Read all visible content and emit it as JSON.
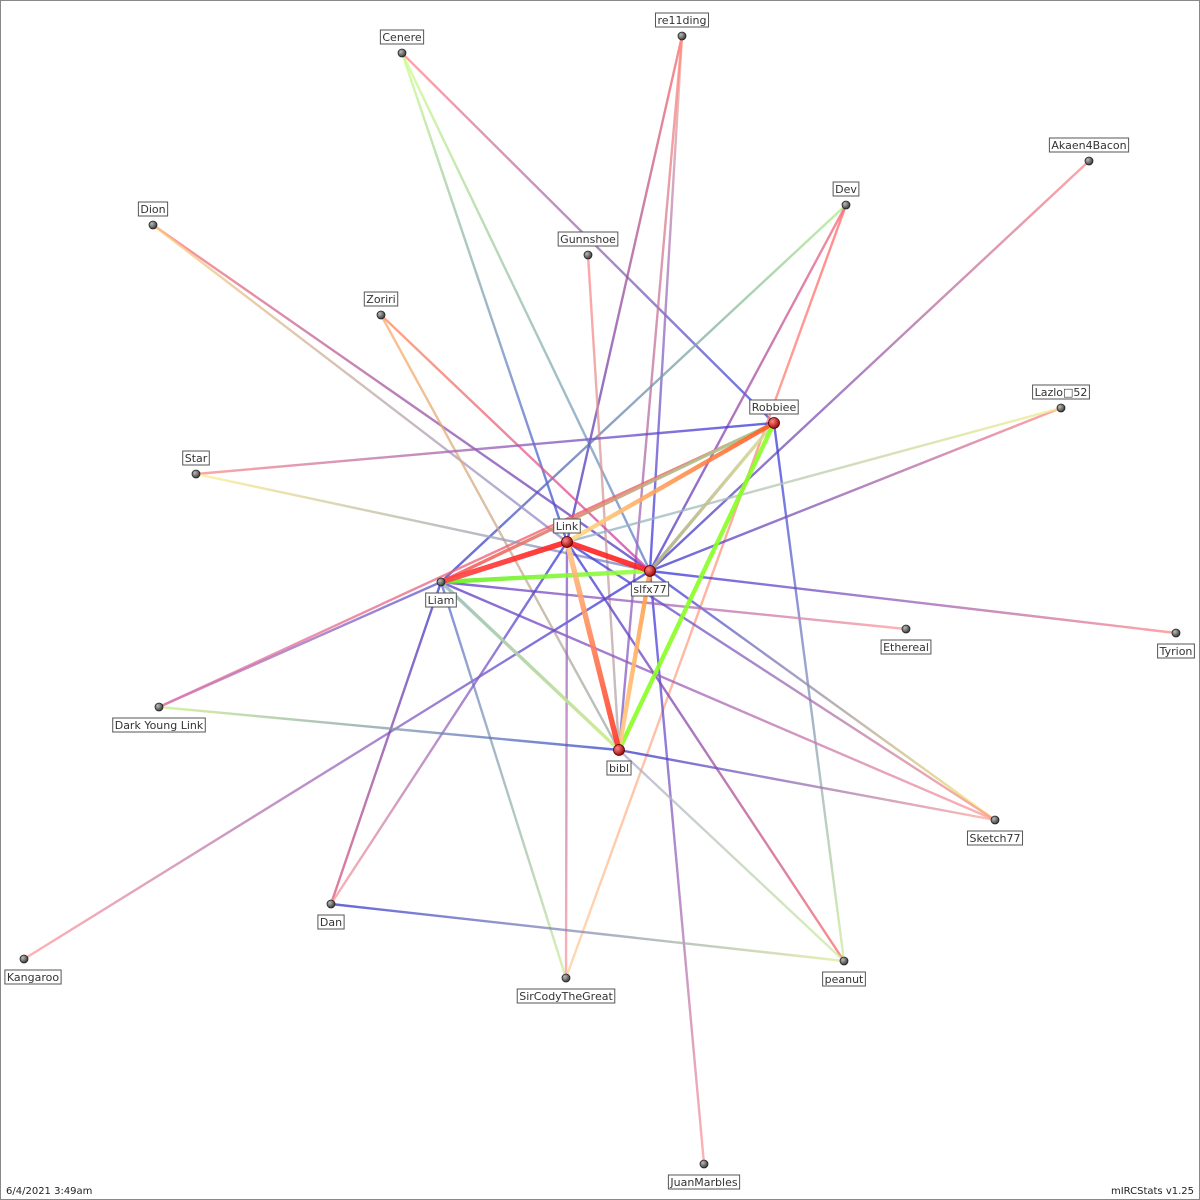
{
  "graph": {
    "nodes": [
      {
        "id": "cenere",
        "name": "Cenere",
        "major": false
      },
      {
        "id": "re11ding",
        "name": "re11ding",
        "major": false
      },
      {
        "id": "akaen4bacon",
        "name": "Akaen4Bacon",
        "major": false
      },
      {
        "id": "dev",
        "name": "Dev",
        "major": false
      },
      {
        "id": "dion",
        "name": "Dion",
        "major": false
      },
      {
        "id": "gunnshoe",
        "name": "Gunnshoe",
        "major": false
      },
      {
        "id": "zoriri",
        "name": "Zoriri",
        "major": false
      },
      {
        "id": "robbiee",
        "name": "Robbiee",
        "major": true
      },
      {
        "id": "lazlo52",
        "name": "Lazlo□52",
        "major": false
      },
      {
        "id": "star",
        "name": "Star",
        "major": false
      },
      {
        "id": "link",
        "name": "Link",
        "major": true
      },
      {
        "id": "slfx77",
        "name": "slfx77",
        "major": true
      },
      {
        "id": "liam",
        "name": "Liam",
        "major": false
      },
      {
        "id": "ethereal",
        "name": "Ethereal",
        "major": false
      },
      {
        "id": "tyrion",
        "name": "Tyrion",
        "major": false
      },
      {
        "id": "darkyounglink",
        "name": "Dark Young Link",
        "major": false
      },
      {
        "id": "bibl",
        "name": "bibl",
        "major": true
      },
      {
        "id": "sketch77",
        "name": "Sketch77",
        "major": false
      },
      {
        "id": "dan",
        "name": "Dan",
        "major": false
      },
      {
        "id": "kangaroo",
        "name": "Kangaroo",
        "major": false
      },
      {
        "id": "sircodythegreat",
        "name": "SirCodyTheGreat",
        "major": false
      },
      {
        "id": "peanut",
        "name": "peanut",
        "major": false
      },
      {
        "id": "juanmarbles",
        "name": "JuanMarbles",
        "major": false
      }
    ],
    "edges": [
      {
        "source": "link",
        "target": "slfx77",
        "weight": 5,
        "colors": [
          "#ff2222",
          "#ff2222"
        ]
      },
      {
        "source": "link",
        "target": "liam",
        "weight": 5,
        "colors": [
          "#ff2222",
          "#ff4444"
        ]
      },
      {
        "source": "link",
        "target": "robbiee",
        "weight": 4,
        "colors": [
          "#ffdd88",
          "#ff5522"
        ]
      },
      {
        "source": "liam",
        "target": "slfx77",
        "weight": 4,
        "colors": [
          "#66ee22",
          "#99ff44"
        ]
      },
      {
        "source": "link",
        "target": "bibl",
        "weight": 5,
        "colors": [
          "#ffcc88",
          "#ff3322"
        ]
      },
      {
        "source": "robbiee",
        "target": "bibl",
        "weight": 4,
        "colors": [
          "#88ff22",
          "#88ff22"
        ]
      },
      {
        "source": "slfx77",
        "target": "bibl",
        "weight": 4,
        "colors": [
          "#ff9944",
          "#ffcc88"
        ]
      },
      {
        "source": "slfx77",
        "target": "robbiee",
        "weight": 3,
        "colors": [
          "#aaaa88",
          "#dddd99"
        ]
      },
      {
        "source": "liam",
        "target": "robbiee",
        "weight": 3,
        "colors": [
          "#ff5555",
          "#99dd99"
        ]
      },
      {
        "source": "liam",
        "target": "bibl",
        "weight": 3,
        "colors": [
          "#99bbbb",
          "#ccee88"
        ]
      },
      {
        "source": "cenere",
        "target": "slfx77",
        "weight": 2,
        "colors": [
          "#ccff88",
          "#5577cc"
        ]
      },
      {
        "source": "cenere",
        "target": "link",
        "weight": 2,
        "colors": [
          "#ccff88",
          "#3344dd"
        ]
      },
      {
        "source": "cenere",
        "target": "robbiee",
        "weight": 2,
        "colors": [
          "#ff8888",
          "#3344dd"
        ]
      },
      {
        "source": "re11ding",
        "target": "link",
        "weight": 2,
        "colors": [
          "#ff6666",
          "#3333cc"
        ]
      },
      {
        "source": "re11ding",
        "target": "slfx77",
        "weight": 2,
        "colors": [
          "#ffaa99",
          "#3333dd"
        ]
      },
      {
        "source": "re11ding",
        "target": "bibl",
        "weight": 2,
        "colors": [
          "#ff8877",
          "#7755cc"
        ]
      },
      {
        "source": "akaen4bacon",
        "target": "slfx77",
        "weight": 2,
        "colors": [
          "#ff8888",
          "#3333cc"
        ]
      },
      {
        "source": "dev",
        "target": "liam",
        "weight": 2,
        "colors": [
          "#aaee88",
          "#3333cc"
        ]
      },
      {
        "source": "dev",
        "target": "slfx77",
        "weight": 2,
        "colors": [
          "#ff6677",
          "#4433cc"
        ]
      },
      {
        "source": "dev",
        "target": "sircodythegreat",
        "weight": 2,
        "colors": [
          "#ff6666",
          "#ffcc99"
        ]
      },
      {
        "source": "dion",
        "target": "slfx77",
        "weight": 2,
        "colors": [
          "#ff7777",
          "#4433cc"
        ]
      },
      {
        "source": "dion",
        "target": "link",
        "weight": 2,
        "colors": [
          "#ffcc77",
          "#8888cc"
        ]
      },
      {
        "source": "gunnshoe",
        "target": "bibl",
        "weight": 2,
        "colors": [
          "#ff8888",
          "#aaaaaa"
        ]
      },
      {
        "source": "zoriri",
        "target": "slfx77",
        "weight": 2,
        "colors": [
          "#ff8855",
          "#cc33aa"
        ]
      },
      {
        "source": "zoriri",
        "target": "bibl",
        "weight": 2,
        "colors": [
          "#ffaa66",
          "#99aaaa"
        ]
      },
      {
        "source": "robbiee",
        "target": "star",
        "weight": 2,
        "colors": [
          "#3333dd",
          "#ff8888"
        ]
      },
      {
        "source": "robbiee",
        "target": "peanut",
        "weight": 2,
        "colors": [
          "#3333dd",
          "#ccee99"
        ]
      },
      {
        "source": "robbiee",
        "target": "darkyounglink",
        "weight": 2,
        "colors": [
          "#ff4444",
          "#dd77aa"
        ]
      },
      {
        "source": "lazlo52",
        "target": "slfx77",
        "weight": 2,
        "colors": [
          "#ff8888",
          "#3333cc"
        ]
      },
      {
        "source": "lazlo52",
        "target": "link",
        "weight": 2,
        "colors": [
          "#eeee88",
          "#88aacc"
        ]
      },
      {
        "source": "star",
        "target": "slfx77",
        "weight": 2,
        "colors": [
          "#ffee88",
          "#6677cc"
        ]
      },
      {
        "source": "slfx77",
        "target": "tyrion",
        "weight": 2,
        "colors": [
          "#3333dd",
          "#ff8888"
        ]
      },
      {
        "source": "slfx77",
        "target": "sketch77",
        "weight": 2,
        "colors": [
          "#3333dd",
          "#ffee66"
        ]
      },
      {
        "source": "slfx77",
        "target": "juanmarbles",
        "weight": 2,
        "colors": [
          "#3333dd",
          "#ff9999"
        ]
      },
      {
        "source": "slfx77",
        "target": "kangaroo",
        "weight": 2,
        "colors": [
          "#3333dd",
          "#ff9999"
        ]
      },
      {
        "source": "liam",
        "target": "ethereal",
        "weight": 2,
        "colors": [
          "#5533cc",
          "#ff9999"
        ]
      },
      {
        "source": "liam",
        "target": "sketch77",
        "weight": 2,
        "colors": [
          "#5533cc",
          "#ff9999"
        ]
      },
      {
        "source": "liam",
        "target": "darkyounglink",
        "weight": 2,
        "colors": [
          "#5555cc",
          "#dd77aa"
        ]
      },
      {
        "source": "liam",
        "target": "dan",
        "weight": 2,
        "colors": [
          "#3333cc",
          "#dd5577"
        ]
      },
      {
        "source": "liam",
        "target": "sircodythegreat",
        "weight": 2,
        "colors": [
          "#5566cc",
          "#ccee99"
        ]
      },
      {
        "source": "link",
        "target": "sketch77",
        "weight": 2,
        "colors": [
          "#3333dd",
          "#ff9988"
        ]
      },
      {
        "source": "link",
        "target": "peanut",
        "weight": 2,
        "colors": [
          "#3333dd",
          "#ff6666"
        ]
      },
      {
        "source": "link",
        "target": "dan",
        "weight": 2,
        "colors": [
          "#3333dd",
          "#ff9999"
        ]
      },
      {
        "source": "link",
        "target": "sircodythegreat",
        "weight": 2,
        "colors": [
          "#7755cc",
          "#ff9999"
        ]
      },
      {
        "source": "darkyounglink",
        "target": "bibl",
        "weight": 2,
        "colors": [
          "#ccee88",
          "#3344cc"
        ]
      },
      {
        "source": "bibl",
        "target": "sketch77",
        "weight": 2,
        "colors": [
          "#3333cc",
          "#ffaa99"
        ]
      },
      {
        "source": "dan",
        "target": "peanut",
        "weight": 2,
        "colors": [
          "#3333cc",
          "#ddee99"
        ]
      },
      {
        "source": "bibl",
        "target": "peanut",
        "weight": 2,
        "colors": [
          "#aaaacc",
          "#ccee99"
        ]
      }
    ]
  },
  "footer": {
    "timestamp": "6/4/2021 3:49am",
    "credit": "mIRCStats v1.25"
  }
}
